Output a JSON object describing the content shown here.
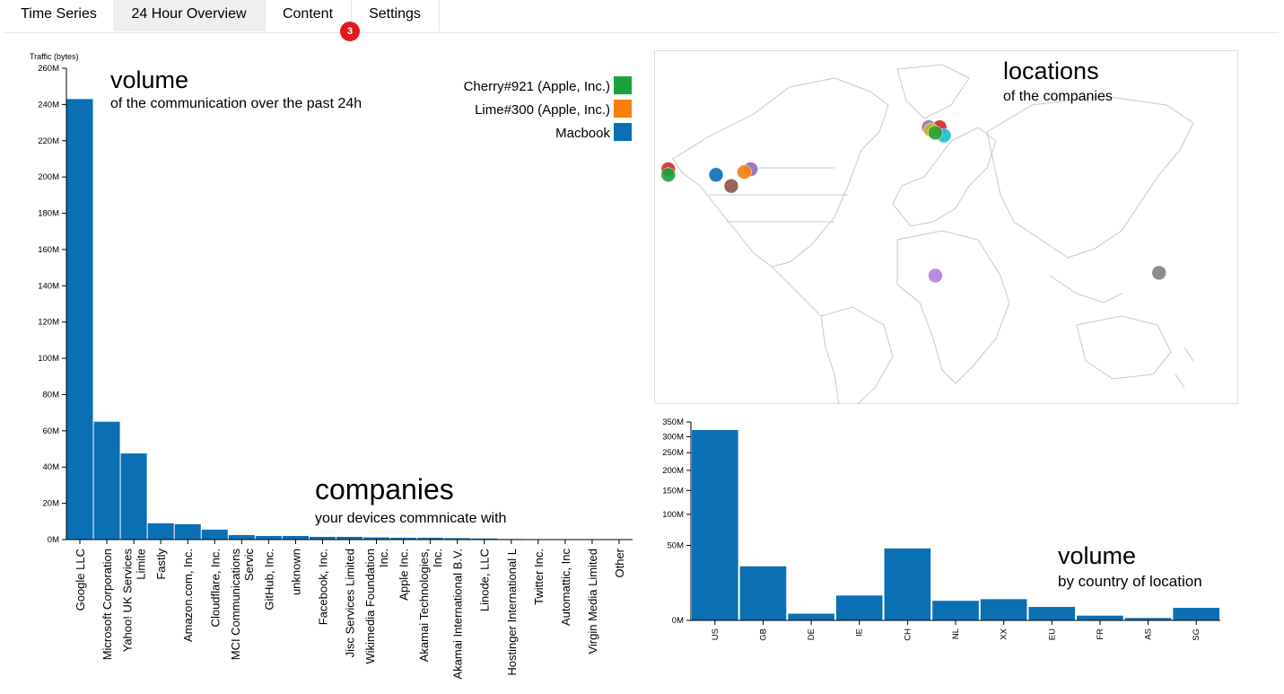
{
  "tabs": [
    {
      "label": "Time Series"
    },
    {
      "label": "24 Hour Overview"
    },
    {
      "label": "Content"
    },
    {
      "label": "Settings"
    }
  ],
  "content_badge": "3",
  "main_chart": {
    "heading": "volume",
    "subheading": "of the communication over the past 24h",
    "ylabel": "Traffic (bytes)",
    "annotation_heading": "companies",
    "annotation_sub": "your devices commnicate with",
    "legend": [
      {
        "label": "Cherry#921 (Apple, Inc.)",
        "color": "#18a33f"
      },
      {
        "label": "Lime#300 (Apple, Inc.)",
        "color": "#f77f0e"
      },
      {
        "label": "Macbook",
        "color": "#0b6fb3"
      }
    ]
  },
  "map_panel": {
    "heading": "locations",
    "subheading": "of the companies"
  },
  "country_chart": {
    "heading": "volume",
    "subheading": "by country of location"
  },
  "chart_data": [
    {
      "type": "bar",
      "ylabel": "Traffic (bytes)",
      "ylim": [
        0,
        260
      ],
      "yunit": "M",
      "yticks": [
        "0M",
        "20M",
        "40M",
        "60M",
        "80M",
        "100M",
        "120M",
        "140M",
        "160M",
        "180M",
        "200M",
        "220M",
        "240M",
        "260M"
      ],
      "categories": [
        [
          "Google LLC"
        ],
        [
          "Microsoft Corporation"
        ],
        [
          "Yahoo! UK Services",
          "Limite"
        ],
        [
          "Fastly"
        ],
        [
          "Amazon.com, Inc."
        ],
        [
          "Cloudflare, Inc."
        ],
        [
          "MCI Communications",
          "Servic"
        ],
        [
          "GitHub, Inc."
        ],
        [
          "unknown"
        ],
        [
          "Facebook, Inc."
        ],
        [
          "Jisc Services Limited"
        ],
        [
          "Wikimedia Foundation",
          "Inc."
        ],
        [
          "Apple Inc."
        ],
        [
          "Akamai Technologies,",
          "Inc."
        ],
        [
          "Akamai International B.V."
        ],
        [
          "Linode, LLC"
        ],
        [
          "Hostinger International L"
        ],
        [
          "Twitter Inc."
        ],
        [
          "Automattic, Inc"
        ],
        [
          "Virgin Media Limited"
        ],
        [
          "Other"
        ]
      ],
      "values": [
        243,
        65,
        47.5,
        9,
        8.5,
        5.5,
        2.5,
        2,
        2,
        1.5,
        1.5,
        1.2,
        1,
        1,
        0.8,
        0.6,
        0.3,
        0.2,
        0.2,
        0.1,
        0.1
      ]
    },
    {
      "type": "bar",
      "yscale": "sqrt",
      "ylim": [
        0,
        350
      ],
      "yunit": "M",
      "yticks": [
        {
          "v": 0,
          "label": "0M"
        },
        {
          "v": 50,
          "label": "50M"
        },
        {
          "v": 100,
          "label": "100M"
        },
        {
          "v": 150,
          "label": "150M"
        },
        {
          "v": 200,
          "label": "200M"
        },
        {
          "v": 250,
          "label": "250M"
        },
        {
          "v": 300,
          "label": "300M"
        },
        {
          "v": 350,
          "label": "350M"
        }
      ],
      "categories": [
        "US",
        "GB",
        "DE",
        "IE",
        "CH",
        "NL",
        "XX",
        "EU",
        "FR",
        "AS",
        "SG"
      ],
      "values": [
        322,
        26,
        0.4,
        5.5,
        46,
        3.4,
        4,
        1.6,
        0.2,
        0.05,
        1.4
      ]
    },
    {
      "type": "scatter",
      "description_points": [
        {
          "lon": -122,
          "lat": 38,
          "color": "#d62728"
        },
        {
          "lon": -122,
          "lat": 36,
          "color": "#18a33f"
        },
        {
          "lon": -100,
          "lat": 36,
          "color": "#0b6fb3"
        },
        {
          "lon": -93,
          "lat": 32,
          "color": "#8c564b"
        },
        {
          "lon": -84,
          "lat": 38,
          "color": "#9467bd"
        },
        {
          "lon": -87,
          "lat": 37,
          "color": "#f77f0e"
        },
        {
          "lon": -2,
          "lat": 53,
          "color": "#9467bd"
        },
        {
          "lon": 2,
          "lat": 52,
          "color": "#e377c2"
        },
        {
          "lon": 3,
          "lat": 53,
          "color": "#d62728"
        },
        {
          "lon": -1,
          "lat": 52,
          "color": "#bcbd22"
        },
        {
          "lon": 5,
          "lat": 50,
          "color": "#17becf"
        },
        {
          "lon": 1,
          "lat": 51,
          "color": "#2ca02c"
        },
        {
          "lon": 1,
          "lat": 0,
          "color": "#b37ee0"
        },
        {
          "lon": 104,
          "lat": 1,
          "color": "#7f7f7f"
        }
      ]
    }
  ]
}
